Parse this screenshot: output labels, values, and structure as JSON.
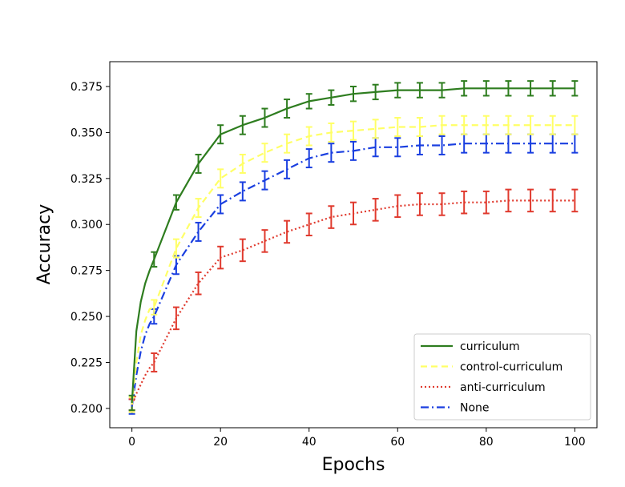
{
  "chart_data": {
    "type": "line",
    "title": "",
    "xlabel": "Epochs",
    "ylabel": "Accuracy",
    "xlim": [
      -5,
      105
    ],
    "ylim": [
      0.1895,
      0.3885
    ],
    "xticks": [
      0,
      20,
      40,
      60,
      80,
      100
    ],
    "xtick_labels": [
      "0",
      "20",
      "40",
      "60",
      "80",
      "100"
    ],
    "yticks": [
      0.2,
      0.225,
      0.25,
      0.275,
      0.3,
      0.325,
      0.35,
      0.375
    ],
    "ytick_labels": [
      "0.200",
      "0.225",
      "0.250",
      "0.275",
      "0.300",
      "0.325",
      "0.350",
      "0.375"
    ],
    "grid": false,
    "legend_position": "lower-right",
    "x": [
      0,
      1,
      2,
      3,
      4,
      5,
      10,
      15,
      20,
      25,
      30,
      35,
      40,
      45,
      50,
      55,
      60,
      65,
      70,
      75,
      80,
      85,
      90,
      95,
      100
    ],
    "error_x": [
      0,
      5,
      10,
      15,
      20,
      25,
      30,
      35,
      40,
      45,
      50,
      55,
      60,
      65,
      70,
      75,
      80,
      85,
      90,
      95,
      100
    ],
    "series": [
      {
        "name": "curriculum",
        "color": "#2e7d1f",
        "dash": "solid",
        "values": [
          0.203,
          0.242,
          0.258,
          0.268,
          0.275,
          0.281,
          0.312,
          0.333,
          0.349,
          0.354,
          0.358,
          0.363,
          0.367,
          0.369,
          0.371,
          0.372,
          0.373,
          0.373,
          0.373,
          0.374,
          0.374,
          0.374,
          0.374,
          0.374,
          0.374
        ],
        "error_values": [
          0.203,
          0.281,
          0.312,
          0.333,
          0.349,
          0.354,
          0.358,
          0.363,
          0.367,
          0.369,
          0.371,
          0.372,
          0.373,
          0.373,
          0.373,
          0.374,
          0.374,
          0.374,
          0.374,
          0.374,
          0.374
        ],
        "errors": [
          0.004,
          0.004,
          0.004,
          0.005,
          0.005,
          0.005,
          0.005,
          0.005,
          0.004,
          0.004,
          0.004,
          0.004,
          0.004,
          0.004,
          0.004,
          0.004,
          0.004,
          0.004,
          0.004,
          0.004,
          0.004
        ]
      },
      {
        "name": "control-curriculum",
        "color": "#ffff66",
        "dash": "dashed",
        "values": [
          0.202,
          0.225,
          0.24,
          0.248,
          0.254,
          0.255,
          0.287,
          0.309,
          0.325,
          0.333,
          0.339,
          0.344,
          0.348,
          0.35,
          0.351,
          0.352,
          0.353,
          0.353,
          0.354,
          0.354,
          0.354,
          0.354,
          0.354,
          0.354,
          0.354
        ],
        "error_values": [
          0.202,
          0.255,
          0.287,
          0.309,
          0.325,
          0.333,
          0.339,
          0.344,
          0.348,
          0.35,
          0.351,
          0.352,
          0.353,
          0.353,
          0.354,
          0.354,
          0.354,
          0.354,
          0.354,
          0.354,
          0.354
        ],
        "errors": [
          0.004,
          0.004,
          0.005,
          0.005,
          0.005,
          0.005,
          0.005,
          0.005,
          0.005,
          0.005,
          0.005,
          0.005,
          0.005,
          0.005,
          0.005,
          0.005,
          0.005,
          0.005,
          0.005,
          0.005,
          0.005
        ]
      },
      {
        "name": "anti-curriculum",
        "color": "#e03a2e",
        "dash": "dotted",
        "values": [
          0.202,
          0.208,
          0.213,
          0.218,
          0.222,
          0.225,
          0.249,
          0.268,
          0.282,
          0.286,
          0.291,
          0.296,
          0.3,
          0.304,
          0.306,
          0.308,
          0.31,
          0.311,
          0.311,
          0.312,
          0.312,
          0.313,
          0.313,
          0.313,
          0.313
        ],
        "error_values": [
          0.202,
          0.225,
          0.249,
          0.268,
          0.282,
          0.286,
          0.291,
          0.296,
          0.3,
          0.304,
          0.306,
          0.308,
          0.31,
          0.311,
          0.311,
          0.312,
          0.312,
          0.313,
          0.313,
          0.313,
          0.313
        ],
        "errors": [
          0.003,
          0.005,
          0.006,
          0.006,
          0.006,
          0.006,
          0.006,
          0.006,
          0.006,
          0.006,
          0.006,
          0.006,
          0.006,
          0.006,
          0.006,
          0.006,
          0.006,
          0.006,
          0.006,
          0.006,
          0.006
        ]
      },
      {
        "name": "None",
        "color": "#1a3fe0",
        "dash": "dashdot",
        "values": [
          0.201,
          0.218,
          0.231,
          0.24,
          0.246,
          0.25,
          0.278,
          0.296,
          0.311,
          0.318,
          0.324,
          0.33,
          0.336,
          0.339,
          0.34,
          0.342,
          0.342,
          0.343,
          0.343,
          0.344,
          0.344,
          0.344,
          0.344,
          0.344,
          0.344
        ],
        "error_values": [
          0.201,
          0.25,
          0.278,
          0.296,
          0.311,
          0.318,
          0.324,
          0.33,
          0.336,
          0.339,
          0.34,
          0.342,
          0.342,
          0.343,
          0.343,
          0.344,
          0.344,
          0.344,
          0.344,
          0.344,
          0.344
        ],
        "errors": [
          0.004,
          0.004,
          0.005,
          0.005,
          0.005,
          0.005,
          0.005,
          0.005,
          0.005,
          0.005,
          0.005,
          0.005,
          0.005,
          0.005,
          0.005,
          0.005,
          0.005,
          0.005,
          0.005,
          0.005,
          0.005
        ]
      }
    ]
  }
}
